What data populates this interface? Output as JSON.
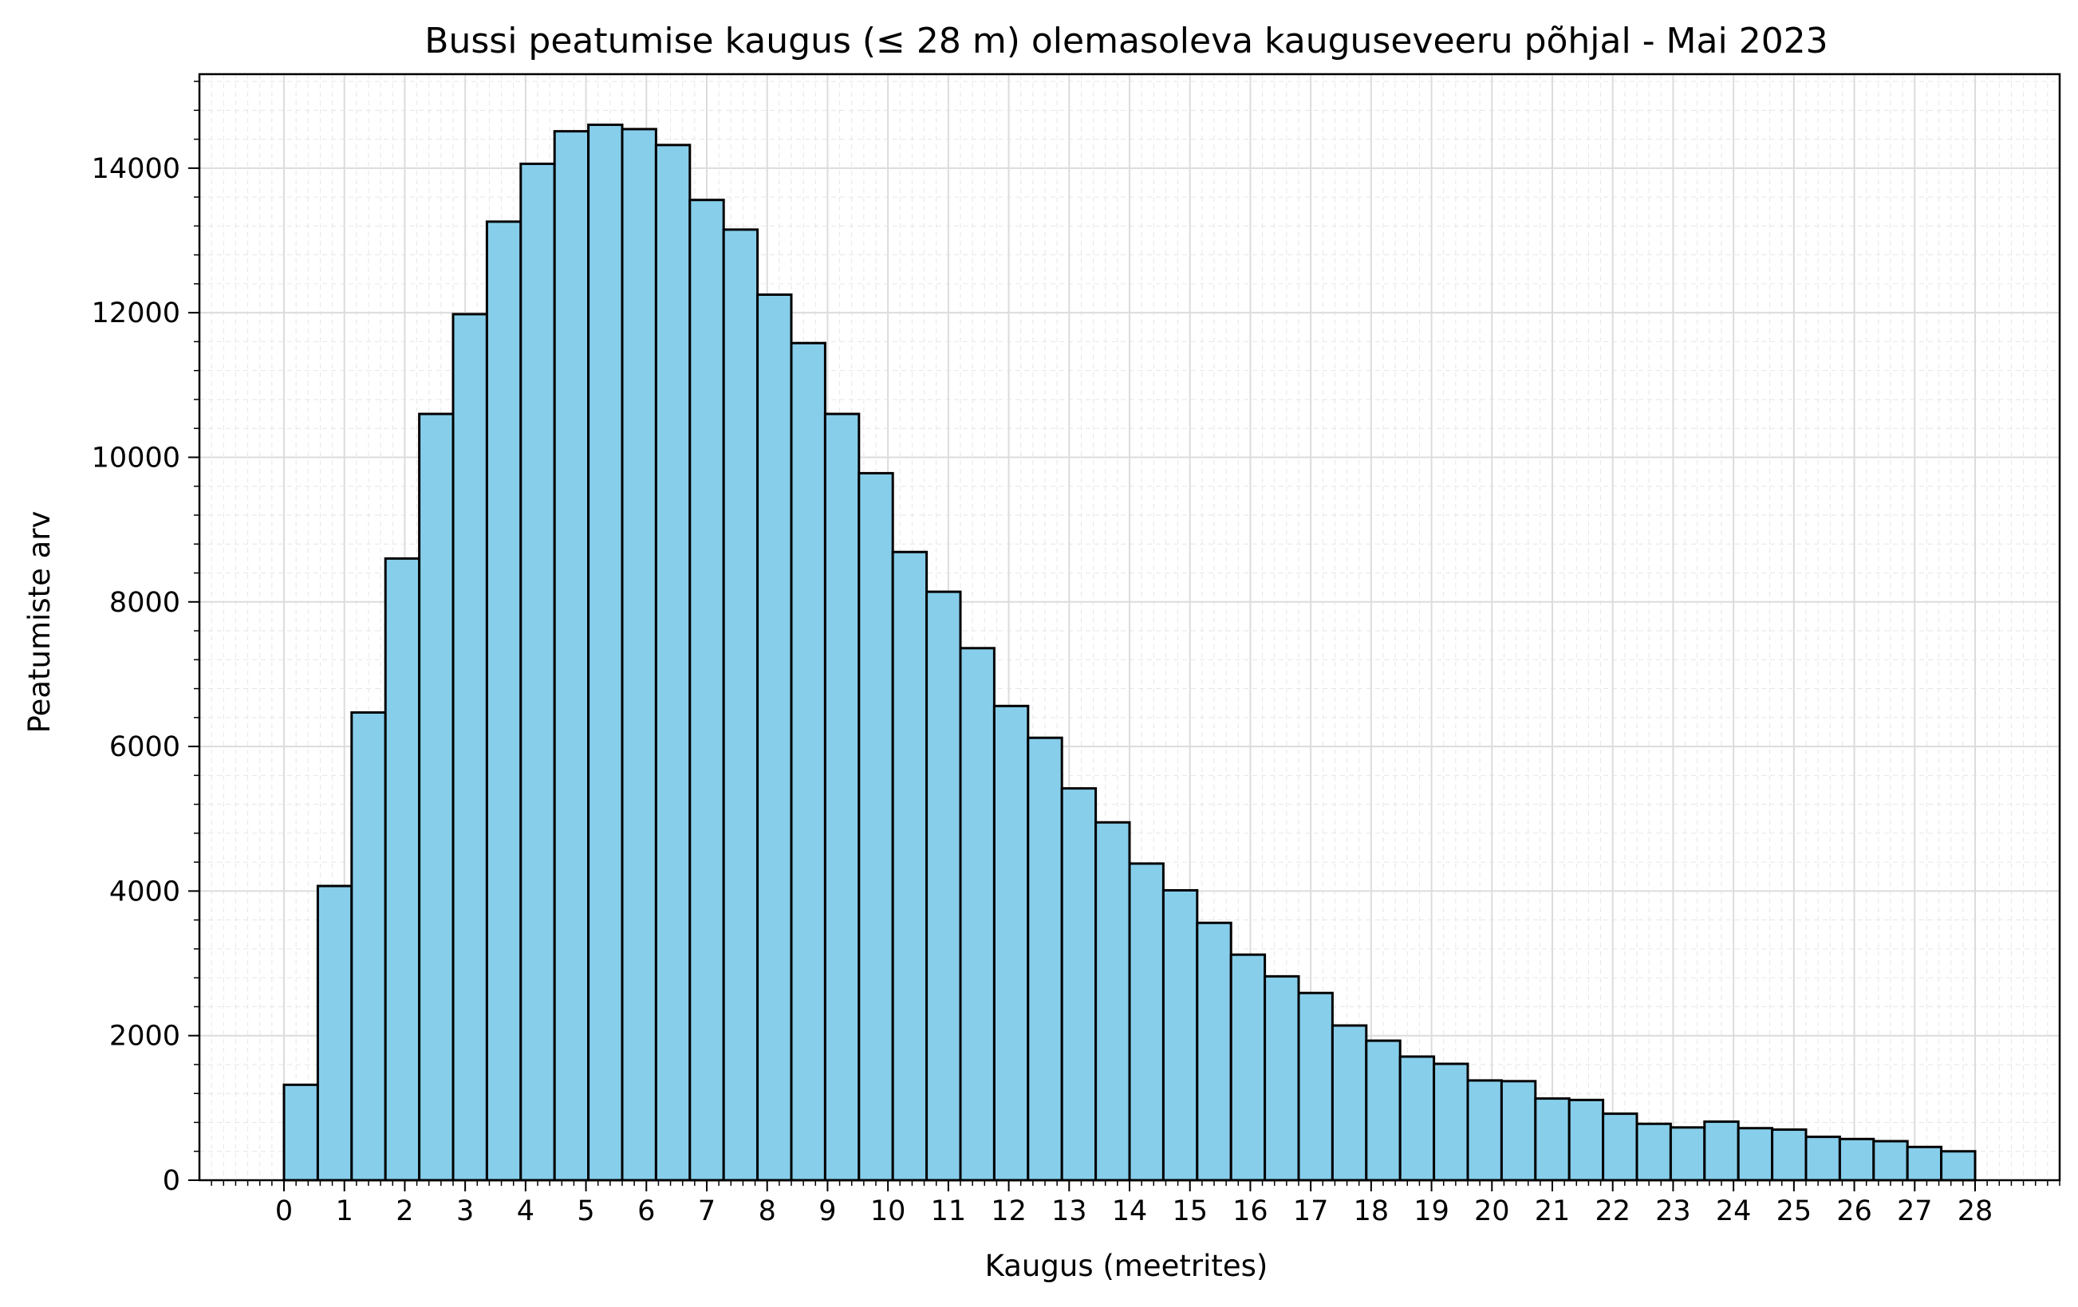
{
  "chart_data": {
    "type": "bar",
    "title": "Bussi peatumise kaugus (≤ 28 m) olemasoleva kauguseveeru põhjal - Mai 2023",
    "xlabel": "Kaugus (meetrites)",
    "ylabel": "Peatumiste arv",
    "xlim": [
      -1.4,
      29.4
    ],
    "ylim": [
      0,
      15300
    ],
    "grid": true,
    "bin_width": 0.56,
    "bin_start": 0,
    "values": [
      1320,
      4070,
      6470,
      8600,
      10600,
      11980,
      13260,
      14060,
      14510,
      14600,
      14540,
      14320,
      13560,
      13150,
      12250,
      11580,
      10600,
      9780,
      8690,
      8140,
      7360,
      6560,
      6120,
      5420,
      4950,
      4380,
      4010,
      3560,
      3120,
      2820,
      2590,
      2140,
      1930,
      1710,
      1610,
      1380,
      1370,
      1130,
      1110,
      920,
      780,
      730,
      810,
      720,
      700,
      600,
      570,
      540,
      460,
      400
    ],
    "x_ticks": [
      "0",
      "1",
      "2",
      "3",
      "4",
      "5",
      "6",
      "7",
      "8",
      "9",
      "10",
      "11",
      "12",
      "13",
      "14",
      "15",
      "16",
      "17",
      "18",
      "19",
      "20",
      "21",
      "22",
      "23",
      "24",
      "25",
      "26",
      "27",
      "28"
    ],
    "y_ticks": [
      "0",
      "2000",
      "4000",
      "6000",
      "8000",
      "10000",
      "12000",
      "14000"
    ],
    "colors": {
      "bar_fill": "#87CEEB",
      "bar_edge": "#000000",
      "grid": "#e6e6e6"
    }
  }
}
